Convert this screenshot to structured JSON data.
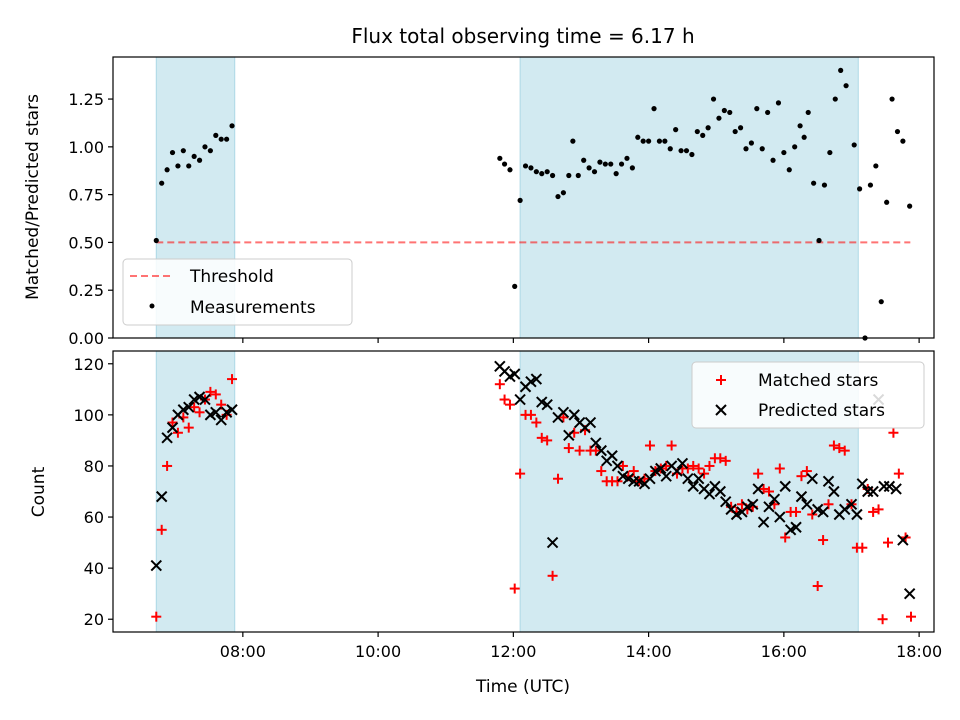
{
  "figure": {
    "title": "Flux total observing time = 6.17 h",
    "xlabel": "Time (UTC)",
    "x_ticks": [
      "08:00",
      "10:00",
      "12:00",
      "14:00",
      "16:00",
      "18:00"
    ],
    "x_tick_hours": [
      8,
      10,
      12,
      14,
      16,
      18
    ],
    "x_range_hours": [
      6.08,
      18.22
    ],
    "shaded_intervals_hours": [
      [
        6.72,
        7.88
      ],
      [
        12.1,
        17.1
      ]
    ],
    "colors": {
      "shade": "#add8e6",
      "threshold": "#ff0000",
      "measurement": "#000000",
      "matched": "#ff0000",
      "predicted": "#000000"
    }
  },
  "chart_data": [
    {
      "type": "scatter",
      "ylabel": "Matched/Predicted stars",
      "ylim": [
        0,
        1.47
      ],
      "y_ticks": [
        "0.00",
        "0.25",
        "0.50",
        "0.75",
        "1.00",
        "1.25"
      ],
      "y_tick_values": [
        0,
        0.25,
        0.5,
        0.75,
        1.0,
        1.25
      ],
      "legend": [
        "Threshold",
        "Measurements"
      ],
      "legend_position": "lower-left",
      "threshold": {
        "y": 0.5,
        "x_start": 6.72,
        "x_end": 17.87
      },
      "measurements": [
        [
          6.72,
          0.51
        ],
        [
          6.8,
          0.81
        ],
        [
          6.88,
          0.88
        ],
        [
          6.96,
          0.97
        ],
        [
          7.04,
          0.9
        ],
        [
          7.12,
          0.98
        ],
        [
          7.2,
          0.9
        ],
        [
          7.28,
          0.95
        ],
        [
          7.36,
          0.93
        ],
        [
          7.44,
          1.0
        ],
        [
          7.52,
          0.98
        ],
        [
          7.6,
          1.06
        ],
        [
          7.68,
          1.04
        ],
        [
          7.76,
          1.04
        ],
        [
          7.84,
          1.11
        ],
        [
          11.8,
          0.94
        ],
        [
          11.87,
          0.91
        ],
        [
          11.95,
          0.88
        ],
        [
          12.02,
          0.27
        ],
        [
          12.1,
          0.72
        ],
        [
          12.18,
          0.9
        ],
        [
          12.26,
          0.89
        ],
        [
          12.34,
          0.87
        ],
        [
          12.42,
          0.86
        ],
        [
          12.5,
          0.87
        ],
        [
          12.58,
          0.85
        ],
        [
          12.66,
          0.74
        ],
        [
          12.74,
          0.76
        ],
        [
          12.82,
          0.85
        ],
        [
          12.88,
          1.03
        ],
        [
          12.96,
          0.85
        ],
        [
          13.04,
          0.93
        ],
        [
          13.12,
          0.89
        ],
        [
          13.2,
          0.87
        ],
        [
          13.28,
          0.92
        ],
        [
          13.36,
          0.91
        ],
        [
          13.44,
          0.91
        ],
        [
          13.52,
          0.86
        ],
        [
          13.6,
          0.91
        ],
        [
          13.68,
          0.94
        ],
        [
          13.76,
          0.89
        ],
        [
          13.84,
          1.05
        ],
        [
          13.92,
          1.03
        ],
        [
          14.0,
          1.03
        ],
        [
          14.08,
          1.2
        ],
        [
          14.16,
          1.03
        ],
        [
          14.24,
          1.03
        ],
        [
          14.32,
          0.99
        ],
        [
          14.4,
          1.09
        ],
        [
          14.48,
          0.98
        ],
        [
          14.56,
          0.98
        ],
        [
          14.64,
          0.96
        ],
        [
          14.72,
          1.08
        ],
        [
          14.8,
          1.06
        ],
        [
          14.88,
          1.1
        ],
        [
          14.96,
          1.25
        ],
        [
          15.04,
          1.15
        ],
        [
          15.12,
          1.19
        ],
        [
          15.2,
          1.18
        ],
        [
          15.28,
          1.08
        ],
        [
          15.36,
          1.1
        ],
        [
          15.44,
          0.99
        ],
        [
          15.52,
          1.02
        ],
        [
          15.6,
          1.2
        ],
        [
          15.68,
          0.99
        ],
        [
          15.76,
          1.18
        ],
        [
          15.84,
          0.93
        ],
        [
          15.92,
          1.23
        ],
        [
          16.0,
          0.97
        ],
        [
          16.08,
          0.88
        ],
        [
          16.16,
          1.0
        ],
        [
          16.24,
          1.11
        ],
        [
          16.3,
          1.05
        ],
        [
          16.36,
          1.18
        ],
        [
          16.44,
          0.81
        ],
        [
          16.52,
          0.51
        ],
        [
          16.6,
          0.8
        ],
        [
          16.68,
          0.97
        ],
        [
          16.76,
          1.25
        ],
        [
          16.84,
          1.4
        ],
        [
          16.92,
          1.32
        ],
        [
          17.04,
          1.01
        ],
        [
          17.12,
          0.78
        ],
        [
          17.2,
          0.0
        ],
        [
          17.28,
          0.8
        ],
        [
          17.36,
          0.9
        ],
        [
          17.44,
          0.19
        ],
        [
          17.52,
          0.71
        ],
        [
          17.6,
          1.25
        ],
        [
          17.68,
          1.08
        ],
        [
          17.76,
          1.03
        ],
        [
          17.86,
          0.69
        ]
      ]
    },
    {
      "type": "scatter",
      "ylabel": "Count",
      "ylim": [
        15,
        125
      ],
      "y_ticks": [
        "20",
        "40",
        "60",
        "80",
        "100",
        "120"
      ],
      "y_tick_values": [
        20,
        40,
        60,
        80,
        100,
        120
      ],
      "legend": [
        "Matched stars",
        "Predicted stars"
      ],
      "legend_position": "top-right",
      "series": [
        {
          "name": "Matched stars",
          "marker": "+",
          "points": [
            [
              6.72,
              21
            ],
            [
              6.8,
              55
            ],
            [
              6.88,
              80
            ],
            [
              6.96,
              97
            ],
            [
              7.04,
              93
            ],
            [
              7.12,
              99
            ],
            [
              7.2,
              95
            ],
            [
              7.28,
              103
            ],
            [
              7.36,
              101
            ],
            [
              7.44,
              106
            ],
            [
              7.52,
              109
            ],
            [
              7.6,
              108
            ],
            [
              7.68,
              104
            ],
            [
              7.76,
              100
            ],
            [
              7.84,
              114
            ],
            [
              11.8,
              112
            ],
            [
              11.87,
              106
            ],
            [
              11.95,
              104
            ],
            [
              12.02,
              32
            ],
            [
              12.1,
              77
            ],
            [
              12.18,
              100
            ],
            [
              12.26,
              100
            ],
            [
              12.34,
              97
            ],
            [
              12.42,
              91
            ],
            [
              12.5,
              90
            ],
            [
              12.58,
              37
            ],
            [
              12.66,
              75
            ],
            [
              12.74,
              99
            ],
            [
              12.82,
              87
            ],
            [
              12.9,
              93
            ],
            [
              12.98,
              86
            ],
            [
              13.06,
              94
            ],
            [
              13.14,
              86
            ],
            [
              13.22,
              86
            ],
            [
              13.3,
              78
            ],
            [
              13.38,
              74
            ],
            [
              13.46,
              74
            ],
            [
              13.54,
              74
            ],
            [
              13.62,
              80
            ],
            [
              13.7,
              76
            ],
            [
              13.78,
              78
            ],
            [
              13.86,
              74
            ],
            [
              13.94,
              75
            ],
            [
              14.02,
              88
            ],
            [
              14.1,
              78
            ],
            [
              14.18,
              79
            ],
            [
              14.26,
              80
            ],
            [
              14.34,
              88
            ],
            [
              14.42,
              77
            ],
            [
              14.5,
              79
            ],
            [
              14.58,
              79
            ],
            [
              14.66,
              80
            ],
            [
              14.74,
              79
            ],
            [
              14.82,
              77
            ],
            [
              14.9,
              80
            ],
            [
              14.98,
              83
            ],
            [
              15.06,
              83
            ],
            [
              15.14,
              82
            ],
            [
              15.22,
              64
            ],
            [
              15.3,
              62
            ],
            [
              15.38,
              65
            ],
            [
              15.46,
              63
            ],
            [
              15.54,
              64
            ],
            [
              15.62,
              77
            ],
            [
              15.7,
              71
            ],
            [
              15.78,
              70
            ],
            [
              15.86,
              65
            ],
            [
              15.94,
              79
            ],
            [
              16.02,
              52
            ],
            [
              16.1,
              62
            ],
            [
              16.18,
              62
            ],
            [
              16.26,
              76
            ],
            [
              16.34,
              78
            ],
            [
              16.42,
              61
            ],
            [
              16.5,
              33
            ],
            [
              16.58,
              51
            ],
            [
              16.66,
              65
            ],
            [
              16.74,
              88
            ],
            [
              16.82,
              87
            ],
            [
              16.9,
              86
            ],
            [
              17.0,
              65
            ],
            [
              17.08,
              48
            ],
            [
              17.16,
              48
            ],
            [
              17.24,
              71
            ],
            [
              17.32,
              62
            ],
            [
              17.4,
              63
            ],
            [
              17.46,
              20
            ],
            [
              17.54,
              50
            ],
            [
              17.62,
              93
            ],
            [
              17.7,
              77
            ],
            [
              17.8,
              52
            ],
            [
              17.88,
              21
            ]
          ]
        },
        {
          "name": "Predicted stars",
          "marker": "x",
          "points": [
            [
              6.72,
              41
            ],
            [
              6.8,
              68
            ],
            [
              6.88,
              91
            ],
            [
              6.96,
              95
            ],
            [
              7.04,
              100
            ],
            [
              7.12,
              102
            ],
            [
              7.2,
              103
            ],
            [
              7.28,
              106
            ],
            [
              7.36,
              107
            ],
            [
              7.44,
              106
            ],
            [
              7.52,
              100
            ],
            [
              7.6,
              101
            ],
            [
              7.68,
              98
            ],
            [
              7.76,
              101
            ],
            [
              7.84,
              102
            ],
            [
              11.8,
              119
            ],
            [
              11.87,
              117
            ],
            [
              11.95,
              115
            ],
            [
              12.02,
              116
            ],
            [
              12.1,
              106
            ],
            [
              12.18,
              111
            ],
            [
              12.26,
              113
            ],
            [
              12.34,
              114
            ],
            [
              12.42,
              105
            ],
            [
              12.5,
              104
            ],
            [
              12.58,
              50
            ],
            [
              12.66,
              99
            ],
            [
              12.74,
              101
            ],
            [
              12.82,
              92
            ],
            [
              12.9,
              100
            ],
            [
              12.98,
              97
            ],
            [
              13.06,
              95
            ],
            [
              13.14,
              97
            ],
            [
              13.22,
              89
            ],
            [
              13.3,
              86
            ],
            [
              13.38,
              82
            ],
            [
              13.46,
              84
            ],
            [
              13.54,
              80
            ],
            [
              13.62,
              76
            ],
            [
              13.7,
              75
            ],
            [
              13.78,
              74
            ],
            [
              13.86,
              74
            ],
            [
              13.94,
              73
            ],
            [
              14.02,
              75
            ],
            [
              14.1,
              78
            ],
            [
              14.18,
              79
            ],
            [
              14.26,
              76
            ],
            [
              14.34,
              80
            ],
            [
              14.42,
              78
            ],
            [
              14.5,
              81
            ],
            [
              14.58,
              75
            ],
            [
              14.66,
              72
            ],
            [
              14.74,
              75
            ],
            [
              14.82,
              71
            ],
            [
              14.9,
              69
            ],
            [
              14.98,
              72
            ],
            [
              15.06,
              70
            ],
            [
              15.14,
              66
            ],
            [
              15.22,
              63
            ],
            [
              15.3,
              61
            ],
            [
              15.38,
              62
            ],
            [
              15.46,
              64
            ],
            [
              15.54,
              65
            ],
            [
              15.62,
              71
            ],
            [
              15.7,
              58
            ],
            [
              15.78,
              64
            ],
            [
              15.86,
              67
            ],
            [
              15.94,
              60
            ],
            [
              16.02,
              72
            ],
            [
              16.1,
              55
            ],
            [
              16.18,
              56
            ],
            [
              16.26,
              68
            ],
            [
              16.34,
              65
            ],
            [
              16.42,
              75
            ],
            [
              16.5,
              63
            ],
            [
              16.58,
              62
            ],
            [
              16.66,
              74
            ],
            [
              16.74,
              70
            ],
            [
              16.82,
              61
            ],
            [
              16.9,
              63
            ],
            [
              17.0,
              65
            ],
            [
              17.08,
              61
            ],
            [
              17.16,
              73
            ],
            [
              17.24,
              70
            ],
            [
              17.32,
              70
            ],
            [
              17.4,
              106
            ],
            [
              17.48,
              72
            ],
            [
              17.56,
              72
            ],
            [
              17.66,
              71
            ],
            [
              17.76,
              51
            ],
            [
              17.86,
              30
            ]
          ]
        }
      ]
    }
  ]
}
